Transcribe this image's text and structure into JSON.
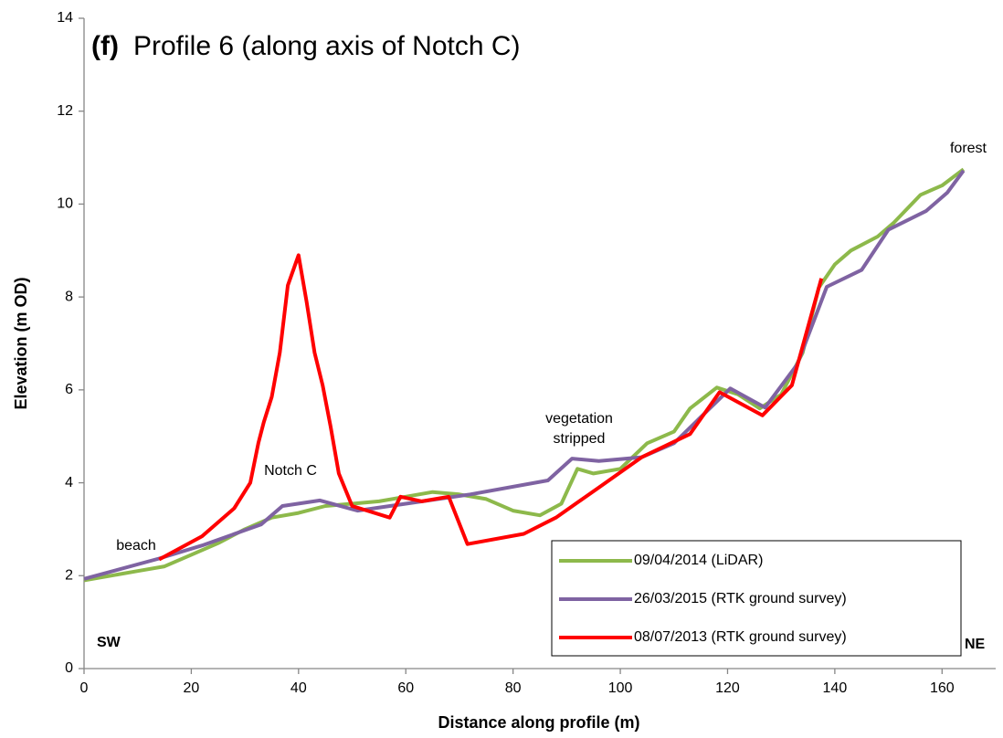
{
  "chart_data": {
    "type": "line",
    "title_label": "(f)",
    "title": "Profile 6 (along axis of Notch C)",
    "x_label": "Distance along profile (m)",
    "y_label": "Elevation (m OD)",
    "annotations": [
      "beach",
      "Notch C",
      [
        "vegetation",
        "stripped"
      ],
      "forest",
      "SW",
      "NE"
    ],
    "xlim": [
      0,
      170
    ],
    "ylim": [
      0,
      14
    ],
    "xticks": [
      0,
      20,
      40,
      60,
      80,
      100,
      120,
      140,
      160
    ],
    "yticks": [
      0,
      2,
      4,
      6,
      8,
      10,
      12,
      14
    ],
    "grid": false,
    "legend": "lower right",
    "series": [
      {
        "name": "09/04/2014 (LiDAR)",
        "color": "#8db94b",
        "x": [
          0,
          5,
          10,
          15,
          20,
          25,
          30,
          35,
          40,
          45,
          50,
          55,
          60,
          65,
          70,
          75,
          80,
          85,
          89,
          92,
          95,
          100,
          105,
          110,
          113,
          118,
          122,
          126,
          130,
          134,
          137,
          140,
          143,
          148,
          151,
          156,
          160,
          164
        ],
        "values": [
          1.9,
          2.0,
          2.1,
          2.2,
          2.45,
          2.7,
          3.0,
          3.25,
          3.35,
          3.5,
          3.55,
          3.6,
          3.7,
          3.8,
          3.75,
          3.65,
          3.4,
          3.3,
          3.55,
          4.3,
          4.2,
          4.3,
          4.85,
          5.1,
          5.6,
          6.05,
          5.9,
          5.6,
          5.9,
          6.8,
          8.2,
          8.7,
          9.0,
          9.3,
          9.6,
          10.2,
          10.4,
          10.75
        ]
      },
      {
        "name": "26/03/2015 (RTK ground survey)",
        "color": "#7f63a2",
        "x": [
          0,
          14,
          22,
          33,
          37,
          44,
          51,
          60,
          72,
          86.5,
          91,
          96,
          104,
          110,
          120.5,
          127,
          133,
          138.5,
          145,
          150,
          157,
          161,
          164
        ],
        "values": [
          1.93,
          2.37,
          2.65,
          3.1,
          3.5,
          3.62,
          3.4,
          3.55,
          3.75,
          4.05,
          4.52,
          4.47,
          4.55,
          4.85,
          6.03,
          5.62,
          6.55,
          8.22,
          8.58,
          9.45,
          9.85,
          10.25,
          10.72
        ]
      },
      {
        "name": "08/07/2013 (RTK ground survey)",
        "color": "#ff0000",
        "x": [
          14,
          22,
          28,
          31,
          32.5,
          33.5,
          35,
          36.5,
          38,
          40,
          41.5,
          43,
          44.5,
          46,
          47.5,
          50,
          57,
          59,
          63,
          68,
          71.5,
          82,
          88,
          96,
          104,
          113,
          118.5,
          126.5,
          132,
          137.5
        ],
        "values": [
          2.35,
          2.85,
          3.45,
          4.0,
          4.85,
          5.3,
          5.85,
          6.8,
          8.25,
          8.9,
          7.9,
          6.8,
          6.1,
          5.2,
          4.2,
          3.5,
          3.25,
          3.7,
          3.6,
          3.7,
          2.68,
          2.9,
          3.25,
          3.9,
          4.55,
          5.05,
          5.95,
          5.45,
          6.1,
          8.4
        ]
      }
    ]
  }
}
